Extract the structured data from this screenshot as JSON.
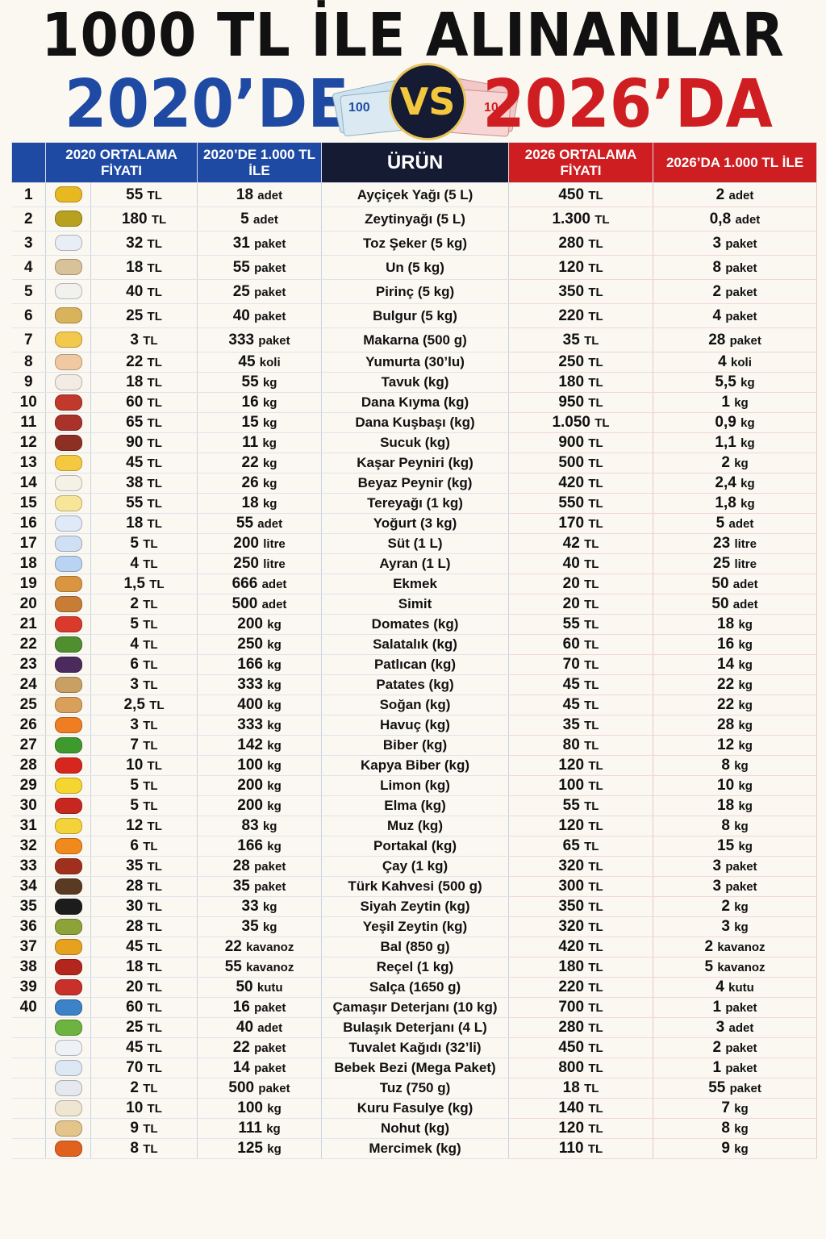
{
  "header": {
    "title": "1000 TL İLE ALINANLAR",
    "left_year": "2020’DE",
    "vs": "VS",
    "right_year": "2026’DA"
  },
  "columns": {
    "price2020": "2020 ORTALAMA FİYATI",
    "qty2020": "2020’DE 1.000 TL İLE",
    "product": "ÜRÜN",
    "price2026": "2026 ORTALAMA FİYATI",
    "qty2026": "2026’DA 1.000 TL İLE"
  },
  "colors": {
    "blue": "#1f4aa3",
    "red": "#cf1e22",
    "dark": "#141b33"
  },
  "rows": [
    {
      "no": "1",
      "icon": "oil-bottle-icon",
      "color": "#e8b820",
      "p20": "55",
      "q20": "18",
      "u20": "adet",
      "product": "Ayçiçek Yağı (5 L)",
      "p26": "450",
      "q26": "2",
      "u26": "adet"
    },
    {
      "no": "2",
      "icon": "olive-oil-bottle-icon",
      "color": "#b7a11e",
      "p20": "180",
      "q20": "5",
      "u20": "adet",
      "product": "Zeytinyağı (5 L)",
      "p26": "1.300",
      "q26": "0,8",
      "u26": "adet"
    },
    {
      "no": "3",
      "icon": "sugar-bag-icon",
      "color": "#e9eef6",
      "p20": "32",
      "q20": "31",
      "u20": "paket",
      "product": "Toz Şeker (5 kg)",
      "p26": "280",
      "q26": "3",
      "u26": "paket"
    },
    {
      "no": "4",
      "icon": "flour-sack-icon",
      "color": "#d8c29a",
      "p20": "18",
      "q20": "55",
      "u20": "paket",
      "product": "Un (5 kg)",
      "p26": "120",
      "q26": "8",
      "u26": "paket"
    },
    {
      "no": "5",
      "icon": "rice-bowl-icon",
      "color": "#f1f1ee",
      "p20": "40",
      "q20": "25",
      "u20": "paket",
      "product": "Pirinç (5 kg)",
      "p26": "350",
      "q26": "2",
      "u26": "paket"
    },
    {
      "no": "6",
      "icon": "bulgur-bowl-icon",
      "color": "#d9b35c",
      "p20": "25",
      "q20": "40",
      "u20": "paket",
      "product": "Bulgur (5 kg)",
      "p26": "220",
      "q26": "4",
      "u26": "paket"
    },
    {
      "no": "7",
      "icon": "pasta-icon",
      "color": "#f2c94c",
      "p20": "3",
      "q20": "333",
      "u20": "paket",
      "product": "Makarna (500 g)",
      "p26": "35",
      "q26": "28",
      "u26": "paket"
    },
    {
      "no": "8",
      "icon": "eggs-icon",
      "color": "#f0c9a0",
      "p20": "22",
      "q20": "45",
      "u20": "koli",
      "product": "Yumurta (30’lu)",
      "p26": "250",
      "q26": "4",
      "u26": "koli"
    },
    {
      "no": "9",
      "icon": "chicken-icon",
      "color": "#f3ece4",
      "p20": "18",
      "q20": "55",
      "u20": "kg",
      "product": "Tavuk (kg)",
      "p26": "180",
      "q26": "5,5",
      "u26": "kg"
    },
    {
      "no": "10",
      "icon": "minced-meat-icon",
      "color": "#c0392b",
      "p20": "60",
      "q20": "16",
      "u20": "kg",
      "product": "Dana Kıyma (kg)",
      "p26": "950",
      "q26": "1",
      "u26": "kg"
    },
    {
      "no": "11",
      "icon": "beef-cubes-icon",
      "color": "#a9322a",
      "p20": "65",
      "q20": "15",
      "u20": "kg",
      "product": "Dana Kuşbaşı (kg)",
      "p26": "1.050",
      "q26": "0,9",
      "u26": "kg"
    },
    {
      "no": "12",
      "icon": "sausage-icon",
      "color": "#8e2f24",
      "p20": "90",
      "q20": "11",
      "u20": "kg",
      "product": "Sucuk (kg)",
      "p26": "900",
      "q26": "1,1",
      "u26": "kg"
    },
    {
      "no": "13",
      "icon": "cheese-icon",
      "color": "#f5c842",
      "p20": "45",
      "q20": "22",
      "u20": "kg",
      "product": "Kaşar Peyniri (kg)",
      "p26": "500",
      "q26": "2",
      "u26": "kg"
    },
    {
      "no": "14",
      "icon": "white-cheese-icon",
      "color": "#f4f1e6",
      "p20": "38",
      "q20": "26",
      "u20": "kg",
      "product": "Beyaz Peynir (kg)",
      "p26": "420",
      "q26": "2,4",
      "u26": "kg"
    },
    {
      "no": "15",
      "icon": "butter-icon",
      "color": "#f7e59a",
      "p20": "55",
      "q20": "18",
      "u20": "kg",
      "product": "Tereyağı (1 kg)",
      "p26": "550",
      "q26": "1,8",
      "u26": "kg"
    },
    {
      "no": "16",
      "icon": "yogurt-icon",
      "color": "#dfe9f7",
      "p20": "18",
      "q20": "55",
      "u20": "adet",
      "product": "Yoğurt (3 kg)",
      "p26": "170",
      "q26": "5",
      "u26": "adet"
    },
    {
      "no": "17",
      "icon": "milk-carton-icon",
      "color": "#cfe0f5",
      "p20": "5",
      "q20": "200",
      "u20": "litre",
      "product": "Süt (1 L)",
      "p26": "42",
      "q26": "23",
      "u26": "litre"
    },
    {
      "no": "18",
      "icon": "ayran-cup-icon",
      "color": "#b8d4f2",
      "p20": "4",
      "q20": "250",
      "u20": "litre",
      "product": "Ayran (1 L)",
      "p26": "40",
      "q26": "25",
      "u26": "litre"
    },
    {
      "no": "19",
      "icon": "bread-icon",
      "color": "#d9953f",
      "p20": "1,5",
      "q20": "666",
      "u20": "adet",
      "product": "Ekmek",
      "p26": "20",
      "q26": "50",
      "u26": "adet"
    },
    {
      "no": "20",
      "icon": "simit-icon",
      "color": "#c77d35",
      "p20": "2",
      "q20": "500",
      "u20": "adet",
      "product": "Simit",
      "p26": "20",
      "q26": "50",
      "u26": "adet"
    },
    {
      "no": "21",
      "icon": "tomato-icon",
      "color": "#d93a2b",
      "p20": "5",
      "q20": "200",
      "u20": "kg",
      "product": "Domates (kg)",
      "p26": "55",
      "q26": "18",
      "u26": "kg"
    },
    {
      "no": "22",
      "icon": "cucumber-icon",
      "color": "#4f8f2f",
      "p20": "4",
      "q20": "250",
      "u20": "kg",
      "product": "Salatalık (kg)",
      "p26": "60",
      "q26": "16",
      "u26": "kg"
    },
    {
      "no": "23",
      "icon": "eggplant-icon",
      "color": "#4b2a5e",
      "p20": "6",
      "q20": "166",
      "u20": "kg",
      "product": "Patlıcan (kg)",
      "p26": "70",
      "q26": "14",
      "u26": "kg"
    },
    {
      "no": "24",
      "icon": "potato-icon",
      "color": "#c9a063",
      "p20": "3",
      "q20": "333",
      "u20": "kg",
      "product": "Patates (kg)",
      "p26": "45",
      "q26": "22",
      "u26": "kg"
    },
    {
      "no": "25",
      "icon": "onion-icon",
      "color": "#d9a05b",
      "p20": "2,5",
      "q20": "400",
      "u20": "kg",
      "product": "Soğan (kg)",
      "p26": "45",
      "q26": "22",
      "u26": "kg"
    },
    {
      "no": "26",
      "icon": "carrot-icon",
      "color": "#ef7d22",
      "p20": "3",
      "q20": "333",
      "u20": "kg",
      "product": "Havuç (kg)",
      "p26": "35",
      "q26": "28",
      "u26": "kg"
    },
    {
      "no": "27",
      "icon": "green-pepper-icon",
      "color": "#3f9a2e",
      "p20": "7",
      "q20": "142",
      "u20": "kg",
      "product": "Biber (kg)",
      "p26": "80",
      "q26": "12",
      "u26": "kg"
    },
    {
      "no": "28",
      "icon": "red-pepper-icon",
      "color": "#d7261e",
      "p20": "10",
      "q20": "100",
      "u20": "kg",
      "product": "Kapya Biber (kg)",
      "p26": "120",
      "q26": "8",
      "u26": "kg"
    },
    {
      "no": "29",
      "icon": "lemon-icon",
      "color": "#f5d630",
      "p20": "5",
      "q20": "200",
      "u20": "kg",
      "product": "Limon (kg)",
      "p26": "100",
      "q26": "10",
      "u26": "kg"
    },
    {
      "no": "30",
      "icon": "apple-icon",
      "color": "#c8271f",
      "p20": "5",
      "q20": "200",
      "u20": "kg",
      "product": "Elma (kg)",
      "p26": "55",
      "q26": "18",
      "u26": "kg"
    },
    {
      "no": "31",
      "icon": "banana-icon",
      "color": "#f3d23a",
      "p20": "12",
      "q20": "83",
      "u20": "kg",
      "product": "Muz (kg)",
      "p26": "120",
      "q26": "8",
      "u26": "kg"
    },
    {
      "no": "32",
      "icon": "orange-icon",
      "color": "#f08a1c",
      "p20": "6",
      "q20": "166",
      "u20": "kg",
      "product": "Portakal (kg)",
      "p26": "65",
      "q26": "15",
      "u26": "kg"
    },
    {
      "no": "33",
      "icon": "tea-glass-icon",
      "color": "#a0301d",
      "p20": "35",
      "q20": "28",
      "u20": "paket",
      "product": "Çay (1 kg)",
      "p26": "320",
      "q26": "3",
      "u26": "paket"
    },
    {
      "no": "34",
      "icon": "coffee-cup-icon",
      "color": "#5a3a22",
      "p20": "28",
      "q20": "35",
      "u20": "paket",
      "product": "Türk Kahvesi (500 g)",
      "p26": "300",
      "q26": "3",
      "u26": "paket"
    },
    {
      "no": "35",
      "icon": "black-olives-icon",
      "color": "#1c1c1c",
      "p20": "30",
      "q20": "33",
      "u20": "kg",
      "product": "Siyah Zeytin (kg)",
      "p26": "350",
      "q26": "2",
      "u26": "kg"
    },
    {
      "no": "36",
      "icon": "green-olives-icon",
      "color": "#8ea23a",
      "p20": "28",
      "q20": "35",
      "u20": "kg",
      "product": "Yeşil Zeytin (kg)",
      "p26": "320",
      "q26": "3",
      "u26": "kg"
    },
    {
      "no": "37",
      "icon": "honey-jar-icon",
      "color": "#e6a21e",
      "p20": "45",
      "q20": "22",
      "u20": "kavanoz",
      "product": "Bal (850 g)",
      "p26": "420",
      "q26": "2",
      "u26": "kavanoz"
    },
    {
      "no": "38",
      "icon": "jam-jar-icon",
      "color": "#b3261e",
      "p20": "18",
      "q20": "55",
      "u20": "kavanoz",
      "product": "Reçel (1 kg)",
      "p26": "180",
      "q26": "5",
      "u26": "kavanoz"
    },
    {
      "no": "39",
      "icon": "tomato-paste-can-icon",
      "color": "#c9302a",
      "p20": "20",
      "q20": "50",
      "u20": "kutu",
      "product": "Salça (1650 g)",
      "p26": "220",
      "q26": "4",
      "u26": "kutu"
    },
    {
      "no": "40",
      "icon": "detergent-box-icon",
      "color": "#3b82c9",
      "p20": "60",
      "q20": "16",
      "u20": "paket",
      "product": "Çamaşır Deterjanı (10 kg)",
      "p26": "700",
      "q26": "1",
      "u26": "paket"
    },
    {
      "no": "",
      "icon": "dish-soap-icon",
      "color": "#6db33f",
      "p20": "25",
      "q20": "40",
      "u20": "adet",
      "product": "Bulaşık Deterjanı (4 L)",
      "p26": "280",
      "q26": "3",
      "u26": "adet"
    },
    {
      "no": "",
      "icon": "toilet-paper-icon",
      "color": "#eef1f5",
      "p20": "45",
      "q20": "22",
      "u20": "paket",
      "product": "Tuvalet Kağıdı (32’li)",
      "p26": "450",
      "q26": "2",
      "u26": "paket"
    },
    {
      "no": "",
      "icon": "diaper-pack-icon",
      "color": "#dde8f5",
      "p20": "70",
      "q20": "14",
      "u20": "paket",
      "product": "Bebek Bezi (Mega Paket)",
      "p26": "800",
      "q26": "1",
      "u26": "paket"
    },
    {
      "no": "",
      "icon": "salt-shaker-icon",
      "color": "#e5e8ee",
      "p20": "2",
      "q20": "500",
      "u20": "paket",
      "product": "Tuz (750 g)",
      "p26": "18",
      "q26": "55",
      "u26": "paket"
    },
    {
      "no": "",
      "icon": "beans-icon",
      "color": "#efe6d2",
      "p20": "10",
      "q20": "100",
      "u20": "kg",
      "product": "Kuru Fasulye (kg)",
      "p26": "140",
      "q26": "7",
      "u26": "kg"
    },
    {
      "no": "",
      "icon": "chickpeas-icon",
      "color": "#e3c48a",
      "p20": "9",
      "q20": "111",
      "u20": "kg",
      "product": "Nohut (kg)",
      "p26": "120",
      "q26": "8",
      "u26": "kg"
    },
    {
      "no": "",
      "icon": "lentils-icon",
      "color": "#e0621e",
      "p20": "8",
      "q20": "125",
      "u20": "kg",
      "product": "Mercimek (kg)",
      "p26": "110",
      "q26": "9",
      "u26": "kg"
    }
  ],
  "currency": "TL"
}
